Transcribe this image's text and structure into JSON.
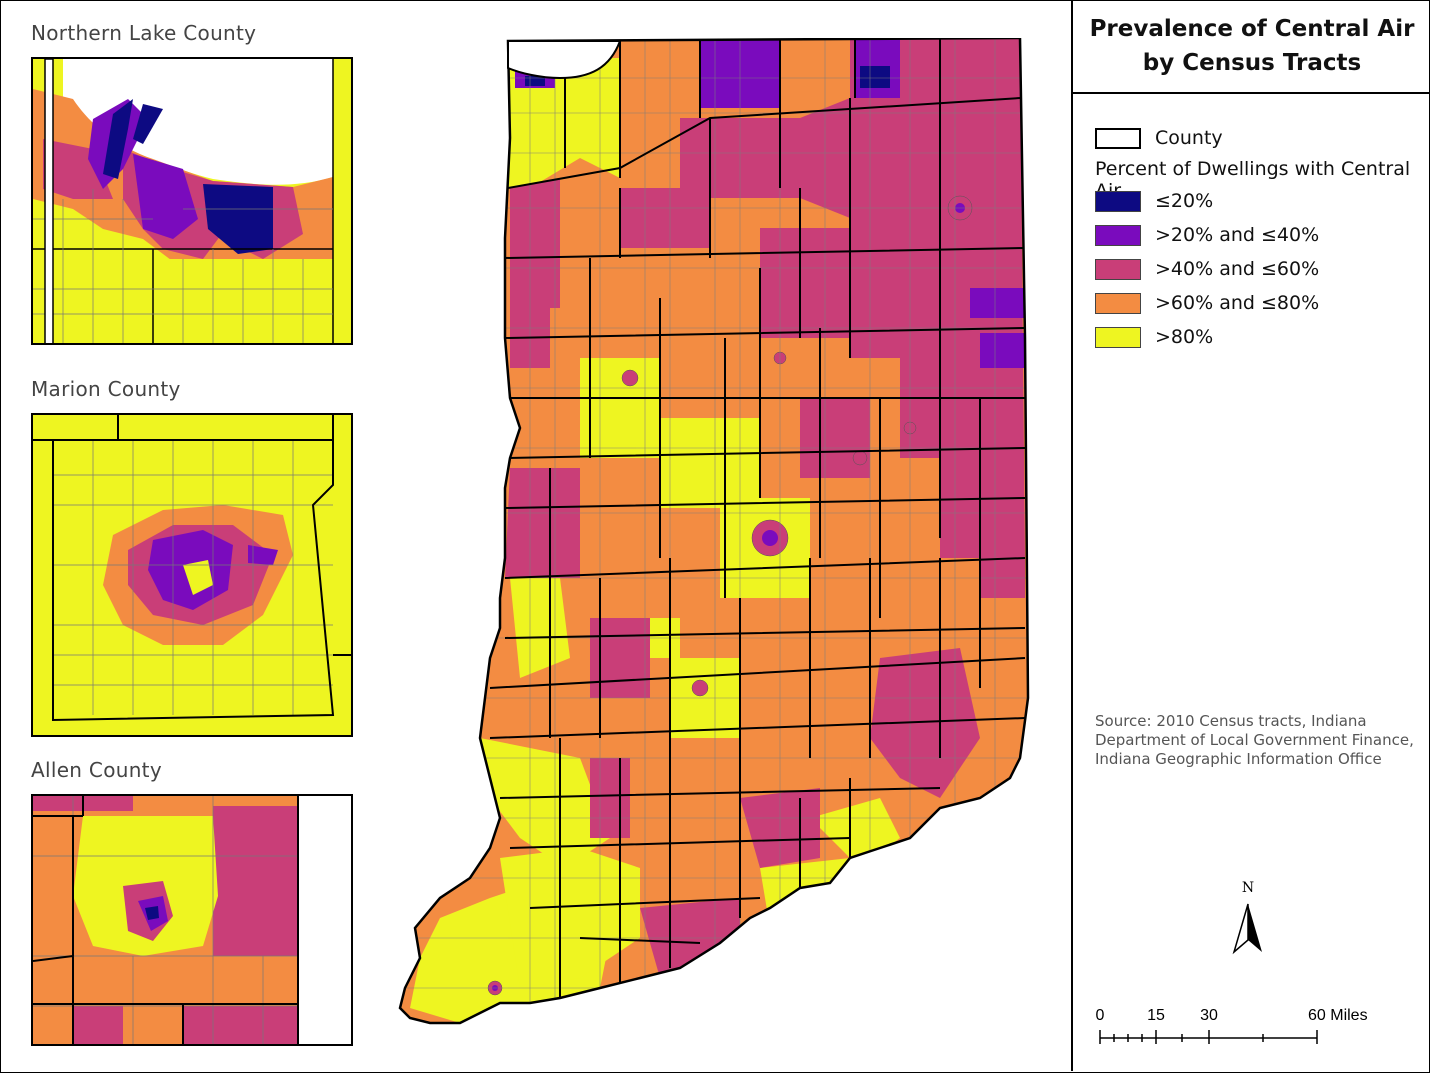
{
  "legend": {
    "title_line1": "Prevalence of Central Air",
    "title_line2": "by Census Tracts",
    "county_label": "County",
    "percent_heading": "Percent of Dwellings with Central Air",
    "classes": [
      {
        "label": "≤20%",
        "color": "#0d0a82"
      },
      {
        "label": ">20% and ≤40%",
        "color": "#7a0bbd"
      },
      {
        "label": ">40% and ≤60%",
        "color": "#c93e78"
      },
      {
        "label": ">60% and ≤80%",
        "color": "#f38c42"
      },
      {
        "label": ">80%",
        "color": "#eef521"
      }
    ],
    "source_line1": "Source: 2010 Census tracts, Indiana",
    "source_line2": "Department of Local Government Finance,",
    "source_line3": "Indiana Geographic Information Office"
  },
  "insets": {
    "lake": "Northern Lake County",
    "marion": "Marion County",
    "allen": "Allen County"
  },
  "north_arrow": "N",
  "scale_bar": {
    "labels": [
      "0",
      "15",
      "30",
      "60 Miles"
    ]
  }
}
